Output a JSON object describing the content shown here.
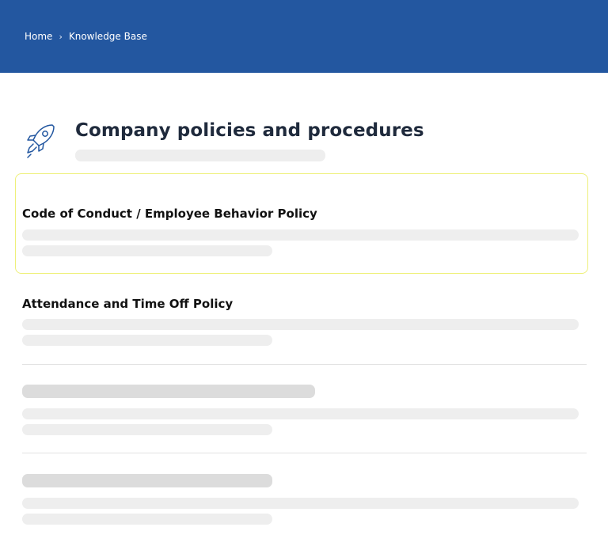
{
  "breadcrumb": {
    "items": [
      "Home",
      "Knowledge Base"
    ],
    "separator": "›"
  },
  "page": {
    "title": "Company policies and procedures",
    "icon": "rocket-icon"
  },
  "articles": [
    {
      "title": "Code of Conduct / Employee Behavior Policy",
      "state": "selected"
    },
    {
      "title": "Attendance and Time Off Policy",
      "state": "normal"
    },
    {
      "title": "",
      "state": "loading"
    },
    {
      "title": "",
      "state": "loading"
    }
  ],
  "colors": {
    "header_bg": "#2357a0",
    "selected_border": "#eef07a",
    "title_text": "#1f2a3c"
  }
}
